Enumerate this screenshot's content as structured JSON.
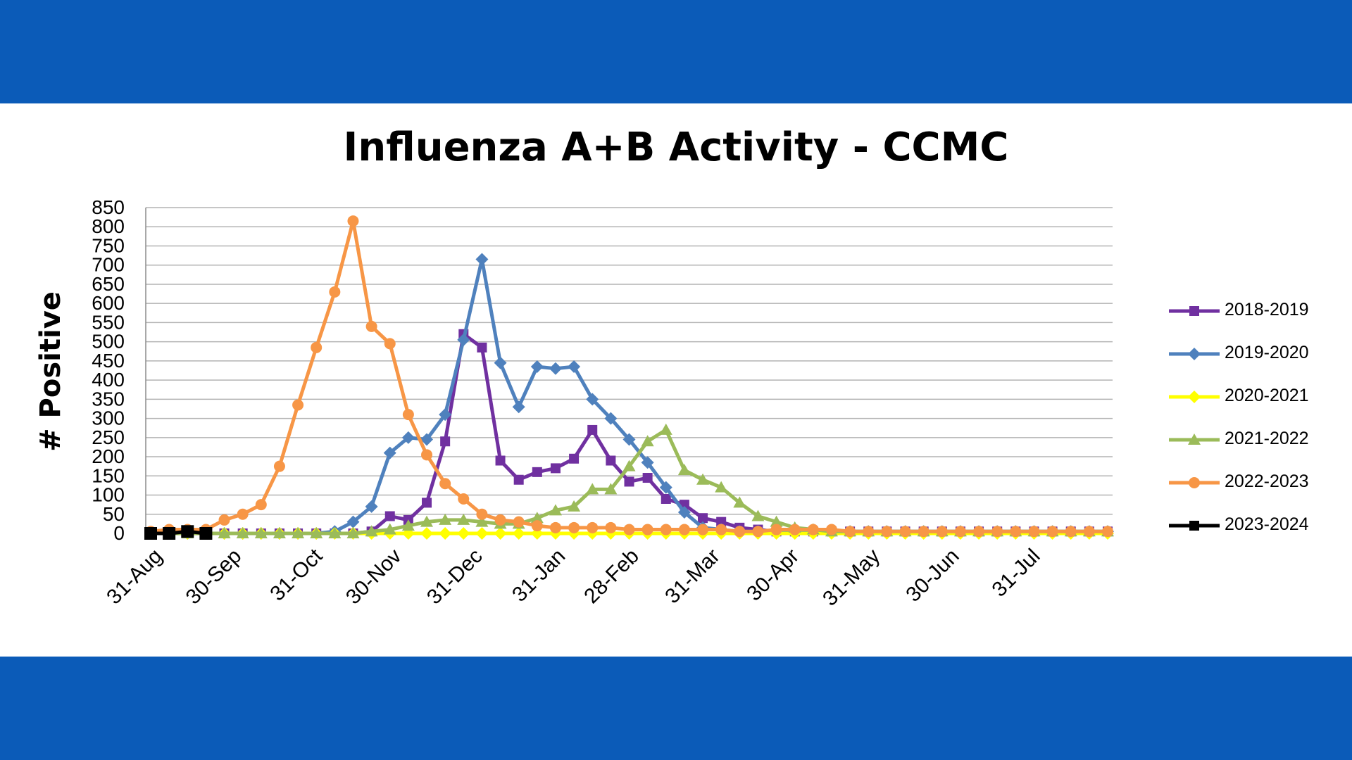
{
  "theme": {
    "band_color": "#0B5BB8",
    "grid_color": "#B3B3B3"
  },
  "chart_data": {
    "type": "line",
    "title": "Influenza A+B Activity - CCMC",
    "xlabel": "",
    "ylabel": "# Positive",
    "ylim": [
      0,
      850
    ],
    "yticks": [
      0,
      50,
      100,
      150,
      200,
      250,
      300,
      350,
      400,
      450,
      500,
      550,
      600,
      650,
      700,
      750,
      800,
      850
    ],
    "xlim": [
      0,
      52
    ],
    "xticks": [
      {
        "label": "31-Aug",
        "week": 0
      },
      {
        "label": "30-Sep",
        "week": 4.3
      },
      {
        "label": "31-Oct",
        "week": 8.7
      },
      {
        "label": "30-Nov",
        "week": 13
      },
      {
        "label": "31-Dec",
        "week": 17.4
      },
      {
        "label": "31-Jan",
        "week": 21.9
      },
      {
        "label": "28-Feb",
        "week": 25.9
      },
      {
        "label": "31-Mar",
        "week": 30.3
      },
      {
        "label": "30-Apr",
        "week": 34.6
      },
      {
        "label": "31-May",
        "week": 39
      },
      {
        "label": "30-Jun",
        "week": 43.3
      },
      {
        "label": "31-Jul",
        "week": 47.7
      }
    ],
    "grid": true,
    "legend_position": "right",
    "series": [
      {
        "name": "2018-2019",
        "color": "#7030A0",
        "marker": "square",
        "x": [
          0,
          1,
          2,
          3,
          4,
          5,
          6,
          7,
          8,
          9,
          10,
          11,
          12,
          13,
          14,
          15,
          16,
          17,
          18,
          19,
          20,
          21,
          22,
          23,
          24,
          25,
          26,
          27,
          28,
          29,
          30,
          31,
          32,
          33,
          34,
          35,
          36,
          37,
          38,
          39,
          40,
          41,
          42,
          43,
          44,
          45,
          46,
          47,
          48,
          49,
          50,
          51,
          52
        ],
        "values": [
          0,
          0,
          0,
          0,
          0,
          0,
          0,
          0,
          0,
          0,
          0,
          0,
          5,
          45,
          35,
          80,
          240,
          520,
          485,
          190,
          140,
          160,
          170,
          195,
          270,
          190,
          135,
          145,
          90,
          75,
          40,
          30,
          15,
          10,
          5,
          5,
          5,
          5,
          5,
          5,
          5,
          5,
          5,
          5,
          5,
          5,
          5,
          5,
          5,
          5,
          5,
          5,
          5
        ]
      },
      {
        "name": "2019-2020",
        "color": "#4F81BD",
        "marker": "diamond",
        "x": [
          0,
          1,
          2,
          3,
          4,
          5,
          6,
          7,
          8,
          9,
          10,
          11,
          12,
          13,
          14,
          15,
          16,
          17,
          18,
          19,
          20,
          21,
          22,
          23,
          24,
          25,
          26,
          27,
          28,
          29,
          30,
          31,
          32,
          33,
          34,
          35,
          36,
          37,
          38,
          39,
          40,
          41,
          42,
          43,
          44,
          45,
          46,
          47,
          48,
          49,
          50,
          51,
          52
        ],
        "values": [
          0,
          0,
          0,
          0,
          0,
          0,
          0,
          0,
          0,
          0,
          5,
          30,
          70,
          210,
          250,
          245,
          310,
          505,
          715,
          445,
          330,
          435,
          430,
          435,
          350,
          300,
          245,
          185,
          120,
          55,
          15,
          10,
          5,
          5,
          5,
          5,
          5,
          5,
          5,
          5,
          5,
          5,
          5,
          5,
          5,
          5,
          5,
          5,
          5,
          5,
          5,
          5,
          5
        ]
      },
      {
        "name": "2020-2021",
        "color": "#FFFF00",
        "marker": "diamond",
        "x": [
          0,
          1,
          2,
          3,
          4,
          5,
          6,
          7,
          8,
          9,
          10,
          11,
          12,
          13,
          14,
          15,
          16,
          17,
          18,
          19,
          20,
          21,
          22,
          23,
          24,
          25,
          26,
          27,
          28,
          29,
          30,
          31,
          32,
          33,
          34,
          35,
          36,
          37,
          38,
          39,
          40,
          41,
          42,
          43,
          44,
          45,
          46,
          47,
          48,
          49,
          50,
          51,
          52
        ],
        "values": [
          0,
          0,
          0,
          0,
          0,
          0,
          0,
          0,
          0,
          0,
          0,
          0,
          0,
          0,
          0,
          0,
          0,
          0,
          0,
          0,
          0,
          0,
          0,
          0,
          0,
          0,
          0,
          0,
          0,
          0,
          0,
          0,
          0,
          0,
          0,
          0,
          0,
          0,
          0,
          0,
          0,
          0,
          0,
          0,
          0,
          0,
          0,
          0,
          0,
          0,
          0,
          0,
          0
        ]
      },
      {
        "name": "2021-2022",
        "color": "#9BBB59",
        "marker": "triangle",
        "x": [
          0,
          1,
          2,
          3,
          4,
          5,
          6,
          7,
          8,
          9,
          10,
          11,
          12,
          13,
          14,
          15,
          16,
          17,
          18,
          19,
          20,
          21,
          22,
          23,
          24,
          25,
          26,
          27,
          28,
          29,
          30,
          31,
          32,
          33,
          34,
          35,
          36,
          37,
          38,
          39,
          40,
          41,
          42,
          43,
          44,
          45,
          46,
          47,
          48,
          49,
          50,
          51,
          52
        ],
        "values": [
          0,
          0,
          0,
          0,
          0,
          0,
          0,
          0,
          0,
          0,
          0,
          0,
          5,
          10,
          20,
          30,
          35,
          35,
          30,
          25,
          25,
          40,
          60,
          70,
          115,
          115,
          175,
          240,
          270,
          165,
          140,
          120,
          80,
          45,
          30,
          15,
          10,
          5,
          5,
          5,
          5,
          5,
          5,
          5,
          5,
          5,
          5,
          5,
          5,
          5,
          5,
          5,
          5
        ]
      },
      {
        "name": "2022-2023",
        "color": "#F79646",
        "marker": "circle",
        "x": [
          0,
          1,
          2,
          3,
          4,
          5,
          6,
          7,
          8,
          9,
          10,
          11,
          12,
          13,
          14,
          15,
          16,
          17,
          18,
          19,
          20,
          21,
          22,
          23,
          24,
          25,
          26,
          27,
          28,
          29,
          30,
          31,
          32,
          33,
          34,
          35,
          36,
          37,
          38,
          39,
          40,
          41,
          42,
          43,
          44,
          45,
          46,
          47,
          48,
          49,
          50,
          51,
          52
        ],
        "values": [
          5,
          10,
          10,
          10,
          35,
          50,
          75,
          175,
          335,
          485,
          630,
          815,
          540,
          495,
          310,
          205,
          130,
          90,
          50,
          35,
          30,
          20,
          15,
          15,
          15,
          15,
          10,
          10,
          10,
          10,
          10,
          10,
          5,
          5,
          10,
          10,
          10,
          10,
          5,
          5,
          5,
          5,
          5,
          5,
          5,
          5,
          5,
          5,
          5,
          5,
          5,
          5,
          5
        ]
      },
      {
        "name": "2023-2024",
        "color": "#000000",
        "marker": "square",
        "x": [
          0,
          1,
          2,
          3
        ],
        "values": [
          0,
          0,
          5,
          0
        ]
      }
    ]
  }
}
